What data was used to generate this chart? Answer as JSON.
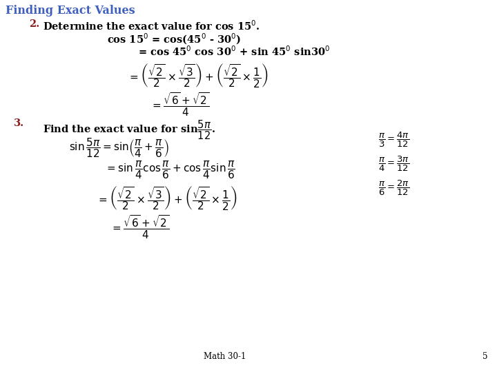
{
  "title": "Finding Exact Values",
  "title_color": "#3F5FBF",
  "background_color": "#ffffff",
  "q2_color": "#8B1A1A",
  "q3_color": "#8B1A1A",
  "footer_text": "Math 30-1",
  "footer_page": "5",
  "title_fontsize": 11.5,
  "body_fontsize": 10.5,
  "math_fontsize": 11.0,
  "small_math_fontsize": 9.5,
  "footer_fontsize": 8.5
}
